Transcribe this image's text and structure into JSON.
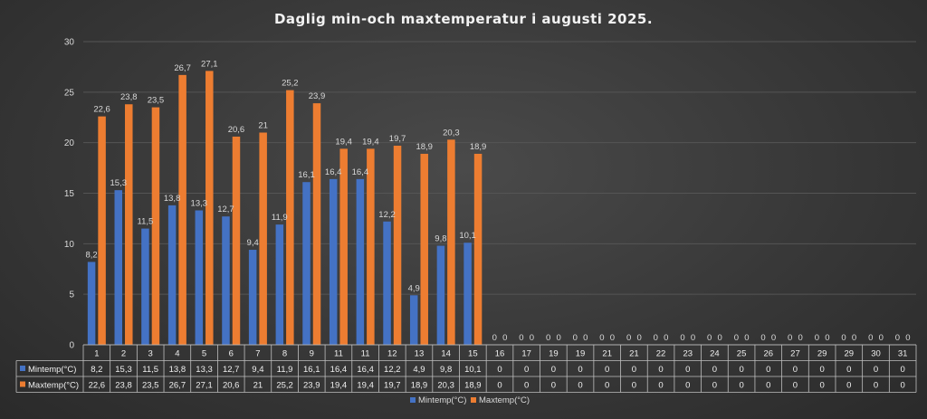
{
  "chart_data": {
    "type": "bar",
    "title": "Daglig min-och maxtemperatur i augusti 2025.",
    "categories": [
      "1",
      "2",
      "3",
      "4",
      "5",
      "6",
      "7",
      "8",
      "9",
      "11",
      "11",
      "12",
      "13",
      "14",
      "15",
      "16",
      "17",
      "19",
      "19",
      "21",
      "21",
      "22",
      "23",
      "24",
      "25",
      "26",
      "27",
      "29",
      "29",
      "30",
      "31"
    ],
    "series": [
      {
        "name": "Mintemp(°C)",
        "color": "#4472C4",
        "values": [
          8.2,
          15.3,
          11.5,
          13.8,
          13.3,
          12.7,
          9.4,
          11.9,
          16.1,
          16.4,
          16.4,
          12.2,
          4.9,
          9.8,
          10.1,
          0,
          0,
          0,
          0,
          0,
          0,
          0,
          0,
          0,
          0,
          0,
          0,
          0,
          0,
          0,
          0
        ],
        "labels": [
          "8,2",
          "15,3",
          "11,5",
          "13,8",
          "13,3",
          "12,7",
          "9,4",
          "11,9",
          "16,1",
          "16,4",
          "16,4",
          "12,2",
          "4,9",
          "9,8",
          "10,1",
          "0",
          "0",
          "0",
          "0",
          "0",
          "0",
          "0",
          "0",
          "0",
          "0",
          "0",
          "0",
          "0",
          "0",
          "0",
          "0"
        ]
      },
      {
        "name": "Maxtemp(°C)",
        "color": "#ED7D31",
        "values": [
          22.6,
          23.8,
          23.5,
          26.7,
          27.1,
          20.6,
          21,
          25.2,
          23.9,
          19.4,
          19.4,
          19.7,
          18.9,
          20.3,
          18.9,
          0,
          0,
          0,
          0,
          0,
          0,
          0,
          0,
          0,
          0,
          0,
          0,
          0,
          0,
          0,
          0
        ],
        "labels": [
          "22,6",
          "23,8",
          "23,5",
          "26,7",
          "27,1",
          "20,6",
          "21",
          "25,2",
          "23,9",
          "19,4",
          "19,4",
          "19,7",
          "18,9",
          "20,3",
          "18,9",
          "0",
          "0",
          "0",
          "0",
          "0",
          "0",
          "0",
          "0",
          "0",
          "0",
          "0",
          "0",
          "0",
          "0",
          "0",
          "0"
        ]
      }
    ],
    "ylim": [
      0,
      30
    ],
    "yticks": [
      "0",
      "5",
      "10",
      "15",
      "20",
      "25",
      "30"
    ],
    "grid": true,
    "data_table": true,
    "legend_position": "bottom"
  }
}
